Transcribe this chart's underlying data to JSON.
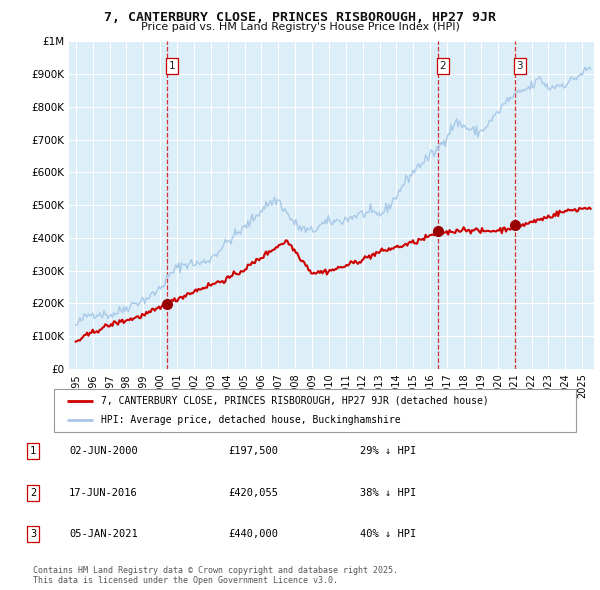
{
  "title": "7, CANTERBURY CLOSE, PRINCES RISBOROUGH, HP27 9JR",
  "subtitle": "Price paid vs. HM Land Registry's House Price Index (HPI)",
  "hpi_color": "#a8c8e8",
  "hpi_fill_color": "#dceef8",
  "price_color": "#cc0000",
  "sale_marker_color": "#990000",
  "background_color": "#ffffff",
  "chart_bg_color": "#dceef8",
  "grid_color": "#ffffff",
  "ylim": [
    0,
    1000000
  ],
  "yticks": [
    0,
    100000,
    200000,
    300000,
    400000,
    500000,
    600000,
    700000,
    800000,
    900000,
    1000000
  ],
  "xlim_start": 1994.6,
  "xlim_end": 2025.7,
  "xtick_years": [
    1995,
    1996,
    1997,
    1998,
    1999,
    2000,
    2001,
    2002,
    2003,
    2004,
    2005,
    2006,
    2007,
    2008,
    2009,
    2010,
    2011,
    2012,
    2013,
    2014,
    2015,
    2016,
    2017,
    2018,
    2019,
    2020,
    2021,
    2022,
    2023,
    2024,
    2025
  ],
  "sales": [
    {
      "date": 2000.42,
      "price": 197500,
      "label": "1"
    },
    {
      "date": 2016.46,
      "price": 420055,
      "label": "2"
    },
    {
      "date": 2021.01,
      "price": 440000,
      "label": "3"
    }
  ],
  "legend_entries": [
    "7, CANTERBURY CLOSE, PRINCES RISBOROUGH, HP27 9JR (detached house)",
    "HPI: Average price, detached house, Buckinghamshire"
  ],
  "table_rows": [
    {
      "num": "1",
      "date": "02-JUN-2000",
      "price": "£197,500",
      "hpi": "29% ↓ HPI"
    },
    {
      "num": "2",
      "date": "17-JUN-2016",
      "price": "£420,055",
      "hpi": "38% ↓ HPI"
    },
    {
      "num": "3",
      "date": "05-JAN-2021",
      "price": "£440,000",
      "hpi": "40% ↓ HPI"
    }
  ],
  "footnote": "Contains HM Land Registry data © Crown copyright and database right 2025.\nThis data is licensed under the Open Government Licence v3.0."
}
